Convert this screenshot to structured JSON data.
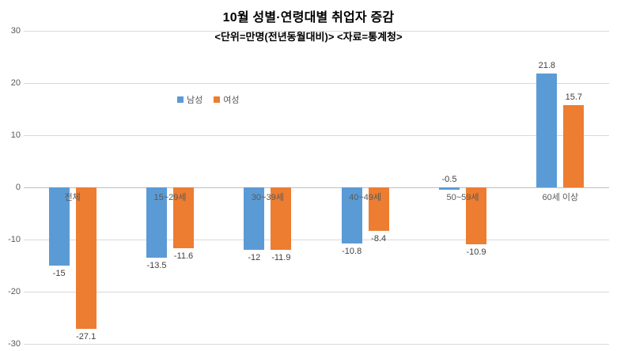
{
  "chart_data": {
    "type": "bar",
    "title": "10월 성별·연령대별 취업자 증감",
    "subtitle": "<단위=만명(전년동월대비)> <자료=통계청>",
    "categories": [
      "전체",
      "15~29세",
      "30~39세",
      "40~49세",
      "50~59세",
      "60세 이상"
    ],
    "series": [
      {
        "name": "남성",
        "color": "#5b9bd5",
        "values": [
          -15,
          -13.5,
          -12,
          -10.8,
          -0.5,
          21.8
        ]
      },
      {
        "name": "여성",
        "color": "#ed7d31",
        "values": [
          -27.1,
          -11.6,
          -11.9,
          -8.4,
          -10.9,
          15.7
        ]
      }
    ],
    "ylim": [
      -30,
      30
    ],
    "yticks": [
      30,
      20,
      10,
      0,
      -10,
      -20,
      -30
    ],
    "ytick_interval": 10,
    "grid": true,
    "legend_position": "inside-upper-left",
    "grid_color": "#d9d9d9",
    "axis_line_color": "#bfbfbf"
  }
}
